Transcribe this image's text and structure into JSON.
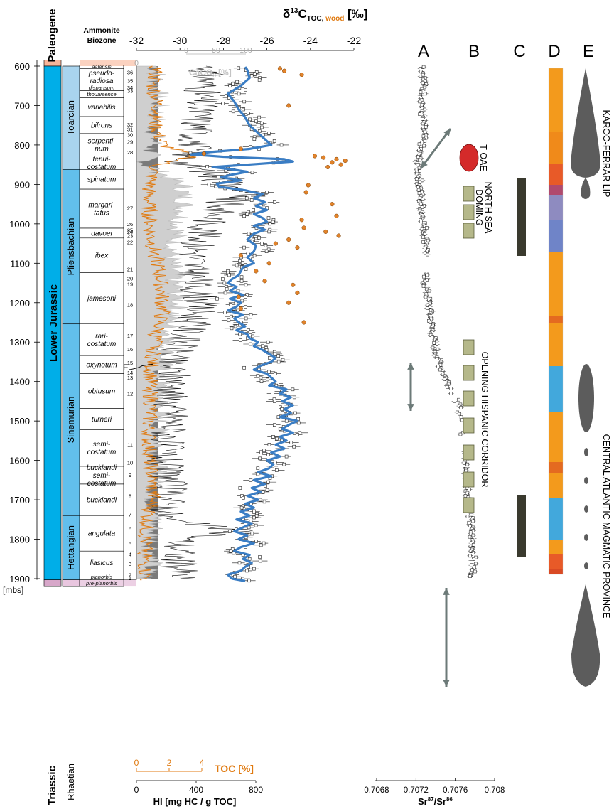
{
  "chart_data": {
    "type": "line",
    "depth_axis": {
      "unit_label": "[mbs]",
      "ticks": [
        600,
        700,
        800,
        900,
        1000,
        1100,
        1200,
        1300,
        1400,
        1500,
        1600,
        1700,
        1800,
        1900
      ],
      "range": [
        585,
        1920
      ]
    },
    "systems": [
      {
        "name": "Paleogene",
        "top": 585,
        "base": 600
      },
      {
        "name": "Lower Jurassic",
        "top": 600,
        "base": 1903
      },
      {
        "name": "Triassic",
        "top": 1903,
        "base": 1920
      }
    ],
    "stages": [
      {
        "name": "Toarcian",
        "top": 600,
        "base": 862
      },
      {
        "name": "Pliensbachian",
        "top": 862,
        "base": 1254
      },
      {
        "name": "Sinemurian",
        "top": 1254,
        "base": 1740
      },
      {
        "name": "Hettangian",
        "top": 1740,
        "base": 1903
      },
      {
        "name": "Rhaetian",
        "top": 1903,
        "base": 1920
      }
    ],
    "biozone_header": "Ammonite Biozone",
    "biozones": [
      {
        "name": "aalensis",
        "top": 597,
        "base": 606
      },
      {
        "name": "pseudo-\nradiosa",
        "top": 606,
        "base": 648
      },
      {
        "name": "dispansum",
        "top": 648,
        "base": 662
      },
      {
        "name": "thouarsense",
        "top": 662,
        "base": 680
      },
      {
        "name": "variabilis",
        "top": 680,
        "base": 728
      },
      {
        "name": "bifrons",
        "top": 728,
        "base": 771
      },
      {
        "name": "serpenti-\nnum",
        "top": 771,
        "base": 828
      },
      {
        "name": "tenui-\ncostatum",
        "top": 828,
        "base": 862
      },
      {
        "name": "spinatum",
        "top": 862,
        "base": 912
      },
      {
        "name": "margari-\ntatus",
        "top": 912,
        "base": 1011
      },
      {
        "name": "davoei",
        "top": 1011,
        "base": 1036
      },
      {
        "name": "ibex",
        "top": 1036,
        "base": 1124
      },
      {
        "name": "jamesoni",
        "top": 1124,
        "base": 1254
      },
      {
        "name": "rari-\ncostatum",
        "top": 1254,
        "base": 1334
      },
      {
        "name": "oxynotum",
        "top": 1334,
        "base": 1380
      },
      {
        "name": "obtusum",
        "top": 1380,
        "base": 1468
      },
      {
        "name": "turneri",
        "top": 1468,
        "base": 1522
      },
      {
        "name": "semi-\ncostatum",
        "top": 1522,
        "base": 1615
      },
      {
        "name": "bucklandi\nsemi-\ncostatum",
        "top": 1615,
        "base": 1660
      },
      {
        "name": "bucklandi",
        "top": 1660,
        "base": 1740
      },
      {
        "name": "angulata",
        "top": 1740,
        "base": 1830
      },
      {
        "name": "liasicus",
        "top": 1830,
        "base": 1888
      },
      {
        "name": "planorbis",
        "top": 1888,
        "base": 1903
      },
      {
        "name": "pre-planorbis",
        "top": 1903,
        "base": 1920
      }
    ],
    "zone_numbers": [
      {
        "n": "36",
        "d": 615
      },
      {
        "n": "35",
        "d": 637
      },
      {
        "n": "34",
        "d": 654
      },
      {
        "n": "33",
        "d": 662
      },
      {
        "n": "32",
        "d": 748
      },
      {
        "n": "31",
        "d": 760
      },
      {
        "n": "30",
        "d": 774
      },
      {
        "n": "29",
        "d": 792
      },
      {
        "n": "28",
        "d": 818
      },
      {
        "n": "27",
        "d": 960
      },
      {
        "n": "26",
        "d": 1000
      },
      {
        "n": "25",
        "d": 1016
      },
      {
        "n": "24",
        "d": 1020
      },
      {
        "n": "23",
        "d": 1030
      },
      {
        "n": "22",
        "d": 1046
      },
      {
        "n": "21",
        "d": 1115
      },
      {
        "n": "20",
        "d": 1138
      },
      {
        "n": "19",
        "d": 1153
      },
      {
        "n": "18",
        "d": 1205
      },
      {
        "n": "17",
        "d": 1283
      },
      {
        "n": "16",
        "d": 1318
      },
      {
        "n": "15",
        "d": 1352
      },
      {
        "n": "14",
        "d": 1377
      },
      {
        "n": "13",
        "d": 1390
      },
      {
        "n": "12",
        "d": 1430
      },
      {
        "n": "11",
        "d": 1560
      },
      {
        "n": "10",
        "d": 1605
      },
      {
        "n": "9",
        "d": 1637
      },
      {
        "n": "8",
        "d": 1690
      },
      {
        "n": "7",
        "d": 1737
      },
      {
        "n": "6",
        "d": 1772
      },
      {
        "n": "5",
        "d": 1810
      },
      {
        "n": "4",
        "d": 1838
      },
      {
        "n": "3",
        "d": 1862
      },
      {
        "n": "2",
        "d": 1890
      },
      {
        "n": "1",
        "d": 1897
      }
    ],
    "fault_label": "F",
    "top_axis": {
      "title_main": "δ",
      "title_sup": "13",
      "title_c": "C",
      "title_sub_toc": "TOC,",
      "title_sub_wood": " wood",
      "title_unit": " [‰]",
      "range": [
        -32,
        -22
      ],
      "ticks": [
        -32,
        -30,
        -28,
        -26,
        -24,
        -22
      ]
    },
    "caco3_axis": {
      "label": "CaCO",
      "label_sub": "3",
      "label_unit": " [%]",
      "ticks": [
        0,
        50,
        100
      ],
      "range": [
        0,
        100
      ]
    },
    "toc_axis": {
      "label": "TOC [%]",
      "ticks": [
        0,
        2,
        4
      ],
      "range": [
        0,
        4
      ]
    },
    "hi_axis": {
      "label": "HI [mg HC / g TOC]",
      "ticks": [
        0,
        400,
        800
      ],
      "range": [
        0,
        800
      ]
    },
    "sr_axis": {
      "label": "Sr",
      "sup1": "87",
      "slash": "/Sr",
      "sup2": "86",
      "ticks": [
        0.7068,
        0.7072,
        0.7076,
        0.708
      ],
      "tick_labels": [
        "0.7068",
        "0.7072",
        "0.7076",
        "0.708"
      ],
      "range": [
        0.7068,
        0.708
      ]
    },
    "series": [
      {
        "name": "δ13C TOC (moving average)",
        "depth": [
          602,
          610,
          630,
          650,
          670,
          690,
          710,
          730,
          750,
          770,
          790,
          800,
          810,
          818,
          824,
          830,
          836,
          842,
          848,
          856,
          862,
          868,
          875,
          882,
          890,
          898,
          906,
          915,
          925,
          935,
          945,
          955,
          965,
          975,
          985,
          995,
          1005,
          1015,
          1025,
          1040,
          1055,
          1070,
          1085,
          1100,
          1110,
          1120,
          1130,
          1140,
          1150,
          1160,
          1170,
          1180,
          1190,
          1200,
          1210,
          1220,
          1230,
          1240,
          1250,
          1260,
          1270,
          1280,
          1290,
          1300,
          1310,
          1320,
          1330,
          1340,
          1350,
          1360,
          1370,
          1380,
          1390,
          1400,
          1410,
          1420,
          1430,
          1440,
          1450,
          1460,
          1470,
          1480,
          1490,
          1500,
          1510,
          1520,
          1530,
          1540,
          1550,
          1560,
          1570,
          1580,
          1590,
          1600,
          1610,
          1620,
          1630,
          1640,
          1650,
          1660,
          1670,
          1680,
          1690,
          1700,
          1710,
          1720,
          1730,
          1740,
          1750,
          1760,
          1770,
          1780,
          1790,
          1800,
          1810,
          1820,
          1830,
          1840,
          1850,
          1860,
          1870,
          1880,
          1890,
          1900,
          1906,
          1908
        ],
        "values": [
          -27.0,
          -26.9,
          -26.8,
          -27.2,
          -27.8,
          -27.5,
          -27.3,
          -27.0,
          -26.8,
          -26.4,
          -26.0,
          -25.8,
          -26.8,
          -28.6,
          -29.5,
          -28.0,
          -25.2,
          -24.8,
          -26.4,
          -28.5,
          -27.6,
          -26.9,
          -27.6,
          -28.1,
          -27.2,
          -28.3,
          -28.2,
          -27.0,
          -26.2,
          -26.6,
          -26.1,
          -26.5,
          -26.0,
          -26.6,
          -26.2,
          -26.0,
          -26.6,
          -26.1,
          -26.6,
          -26.9,
          -26.5,
          -26.6,
          -26.9,
          -26.6,
          -27.1,
          -27.2,
          -27.3,
          -27.6,
          -27.8,
          -27.4,
          -27.7,
          -27.1,
          -27.7,
          -27.2,
          -27.4,
          -27.8,
          -27.1,
          -27.5,
          -27.3,
          -27.0,
          -27.4,
          -26.9,
          -26.8,
          -26.4,
          -26.6,
          -26.2,
          -25.9,
          -25.6,
          -25.8,
          -26.3,
          -26.6,
          -26.0,
          -25.8,
          -25.6,
          -25.9,
          -25.1,
          -25.4,
          -24.9,
          -25.3,
          -24.8,
          -25.2,
          -24.9,
          -25.4,
          -24.6,
          -25.0,
          -25.3,
          -24.8,
          -25.4,
          -25.1,
          -25.6,
          -25.2,
          -25.8,
          -25.4,
          -26.0,
          -25.7,
          -25.9,
          -26.4,
          -25.8,
          -26.6,
          -26.1,
          -26.7,
          -26.3,
          -26.9,
          -26.4,
          -27.0,
          -26.6,
          -27.2,
          -26.8,
          -27.4,
          -26.7,
          -27.1,
          -27.5,
          -26.9,
          -27.3,
          -26.6,
          -27.2,
          -27.5,
          -26.8,
          -27.1,
          -26.7,
          -27.0,
          -27.2,
          -27.8,
          -27.6,
          -27.0
        ]
      },
      {
        "name": "δ13C wood",
        "depth": [
          606,
          612,
          622,
          700,
          810,
          822,
          828,
          832,
          836,
          840,
          844,
          850,
          856,
          902,
          920,
          950,
          980,
          990,
          1010,
          1020,
          1030,
          1040,
          1050,
          1060,
          1080,
          1100,
          1120,
          1145,
          1155,
          1175,
          1185,
          1200,
          1215,
          1250
        ],
        "values": [
          -25.4,
          -25.2,
          -24.4,
          -25.0,
          -27.2,
          -28.9,
          -23.8,
          -23.4,
          -22.8,
          -22.4,
          -23.0,
          -22.6,
          -23.2,
          -24.1,
          -24.2,
          -23.0,
          -22.8,
          -24.4,
          -24.3,
          -23.3,
          -22.7,
          -25.0,
          -25.6,
          -24.6,
          -27.2,
          -25.9,
          -26.5,
          -26.1,
          -24.8,
          -24.6,
          -27.3,
          -25.0,
          -27.2,
          -24.3
        ]
      },
      {
        "name": "HI",
        "depth": [
          600,
          700,
          800,
          850,
          880,
          920,
          960,
          1000,
          1050,
          1100,
          1150,
          1200,
          1250,
          1300,
          1350,
          1400,
          1450,
          1500,
          1550,
          1600,
          1650,
          1700,
          1750,
          1780,
          1800,
          1850,
          1900
        ],
        "values": [
          480,
          420,
          400,
          300,
          600,
          700,
          560,
          480,
          420,
          380,
          400,
          430,
          380,
          300,
          220,
          260,
          220,
          250,
          200,
          180,
          210,
          220,
          200,
          700,
          300,
          280,
          300
        ]
      },
      {
        "name": "CaCO3 [%]",
        "depth": [
          600,
          700,
          800,
          850,
          900,
          950,
          1000,
          1050,
          1100,
          1150,
          1200,
          1250,
          1300,
          1350,
          1400,
          1450,
          1500,
          1550,
          1600,
          1650,
          1700,
          1750,
          1800,
          1850,
          1900
        ],
        "values": [
          25,
          28,
          22,
          12,
          60,
          62,
          55,
          50,
          45,
          50,
          55,
          45,
          40,
          35,
          30,
          32,
          28,
          30,
          25,
          28,
          22,
          25,
          20,
          22,
          10
        ]
      },
      {
        "name": "TOC [%]",
        "depth": [
          600,
          650,
          700,
          750,
          800,
          830,
          850,
          880,
          920,
          980,
          1040,
          1100,
          1160,
          1220,
          1280,
          1340,
          1400,
          1460,
          1520,
          1580,
          1640,
          1700,
          1760,
          1820,
          1880,
          1905
        ],
        "values": [
          1.2,
          1.0,
          1.3,
          1.1,
          1.6,
          3.5,
          1.2,
          0.9,
          0.7,
          0.8,
          0.9,
          1.3,
          1.5,
          1.6,
          1.2,
          1.0,
          0.8,
          0.9,
          0.7,
          0.8,
          0.9,
          1.0,
          0.6,
          0.5,
          0.5,
          0.6
        ]
      },
      {
        "name": "Sr87/Sr86",
        "depth": [
          600,
          640,
          680,
          720,
          760,
          790,
          820,
          850,
          870,
          900,
          940,
          980,
          1020,
          1060,
          1100,
          1120,
          1160,
          1200,
          1240,
          1280,
          1320,
          1360,
          1400,
          1440,
          1480,
          1520,
          1560,
          1620,
          1680,
          1740,
          1780,
          1820,
          1880
        ],
        "values": [
          0.70727,
          0.70728,
          0.70727,
          0.70726,
          0.70728,
          0.70727,
          0.70723,
          0.70722,
          0.70723,
          0.70724,
          0.70725,
          0.70727,
          0.70729,
          0.70731,
          0.70731,
          0.70728,
          0.7073,
          0.70733,
          0.70735,
          0.70737,
          0.7074,
          0.70745,
          0.70752,
          0.7076,
          0.70765,
          0.70767,
          0.70769,
          0.70771,
          0.70773,
          0.70775,
          0.70776,
          0.70778,
          0.70778
        ]
      }
    ],
    "columns": [
      {
        "letter": "A"
      },
      {
        "letter": "B",
        "labels": [
          "T-OAE",
          "NORTH SEA\nDOMING",
          "OPENING HISPANIC CORRIDOR"
        ]
      },
      {
        "letter": "C"
      },
      {
        "letter": "D"
      },
      {
        "letter": "E",
        "labels": [
          "KAROO-FERRAR LIP",
          "CENTRAL ATLANTIC MAGMATIC PROVINCE"
        ]
      }
    ]
  }
}
